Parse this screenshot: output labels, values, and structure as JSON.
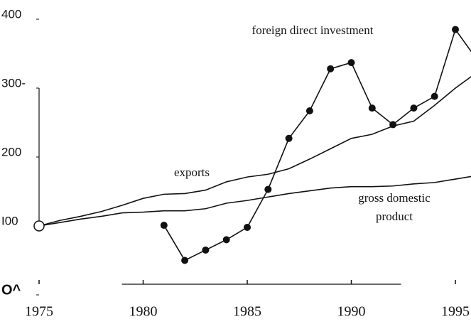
{
  "chart_data": {
    "type": "line",
    "x": [
      1975,
      1976,
      1977,
      1978,
      1979,
      1980,
      1981,
      1982,
      1983,
      1984,
      1985,
      1986,
      1987,
      1988,
      1989,
      1990,
      1991,
      1992,
      1993,
      1994,
      1995,
      1996
    ],
    "series": [
      {
        "name": "foreign direct investment",
        "color": "#111111",
        "markers": true,
        "values": [
          null,
          null,
          null,
          null,
          null,
          null,
          101,
          50,
          65,
          80,
          98,
          153,
          227,
          267,
          328,
          337,
          271,
          247,
          271,
          288,
          385,
          343
        ]
      },
      {
        "name": "exports",
        "color": "#111111",
        "markers": false,
        "values": [
          100,
          108,
          114,
          121,
          130,
          140,
          146,
          147,
          152,
          164,
          171,
          175,
          183,
          197,
          212,
          227,
          233,
          245,
          252,
          275,
          300,
          322
        ]
      },
      {
        "name": "gross domestic product",
        "color": "#111111",
        "markers": false,
        "values": [
          100,
          105,
          110,
          114,
          119,
          120,
          122,
          122,
          125,
          133,
          137,
          142,
          147,
          151,
          155,
          157,
          157,
          158,
          161,
          163,
          168,
          173
        ]
      }
    ],
    "xlim": [
      1975,
      1995.75
    ],
    "xticks": [
      1975,
      1980,
      1985,
      1990,
      1995
    ],
    "ylim": [
      0,
      400
    ],
    "yticks": [
      400,
      {
        "value": 300,
        "label": "300-"
      },
      200,
      {
        "value": 100,
        "label": "I00"
      },
      {
        "value": 0,
        "label": "O^"
      }
    ]
  }
}
